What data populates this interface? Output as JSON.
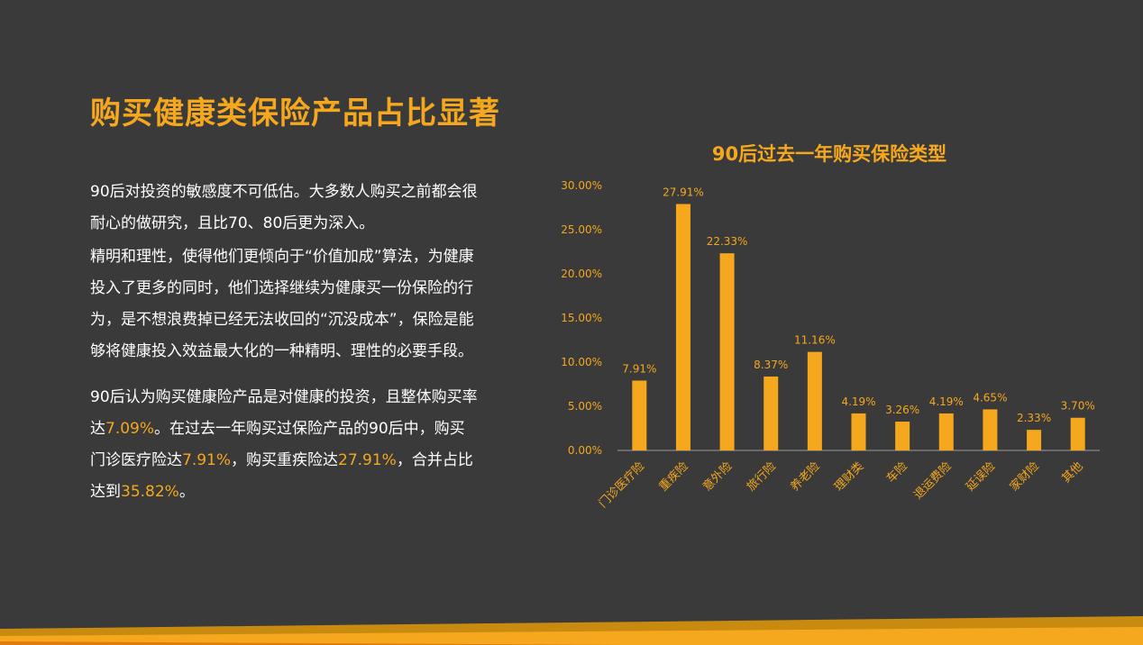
{
  "title": "购买健康类保险产品占比显著",
  "paragraphs": {
    "p1": "90后对投资的敏感度不可低估。大多数人购买之前都会很耐心的做研究，且比70、80后更为深入。",
    "p2": "精明和理性，使得他们更倾向于“价值加成”算法，为健康投入了更多的同时，他们选择继续为健康买一份保险的行为，是不想浪费掉已经无法收回的“沉没成本”，保险是能够将健康投入效益最大化的一种精明、理性的必要手段。",
    "p3": {
      "s1": "90后认为购买健康险产品是对健康的投资，且整体购买率达",
      "h1": "7.09%",
      "s2": "。在过去一年购买过保险产品的90后中，购买门诊医疗险达",
      "h2": "7.91%",
      "s3": "，购买重疾险达",
      "h3": "27.91%",
      "s4": "，合并占比达到",
      "h4": "35.82%",
      "s5": "。"
    }
  },
  "colors": {
    "background": "#3a3a3a",
    "accent": "#f5a81e",
    "bar": "#f5a81e",
    "text": "#ffffff",
    "axis": "#9a9a9a"
  },
  "chart_data": {
    "type": "bar",
    "title": "90后过去一年购买保险类型",
    "categories": [
      "门诊医疗险",
      "重疾险",
      "意外险",
      "旅行险",
      "养老险",
      "理财类",
      "车险",
      "退运费险",
      "延误险",
      "家财险",
      "其他"
    ],
    "values": [
      7.91,
      27.91,
      22.33,
      8.37,
      11.16,
      4.19,
      3.26,
      4.19,
      4.65,
      2.33,
      3.7
    ],
    "data_labels": [
      "7.91%",
      "27.91%",
      "22.33%",
      "8.37%",
      "11.16%",
      "4.19%",
      "3.26%",
      "4.19%",
      "4.65%",
      "2.33%",
      "3.70%"
    ],
    "yticks": [
      0,
      5,
      10,
      15,
      20,
      25,
      30
    ],
    "ytick_labels": [
      "0.00%",
      "5.00%",
      "10.00%",
      "15.00%",
      "20.00%",
      "25.00%",
      "30.00%"
    ],
    "ylim": [
      0,
      30
    ],
    "grid": false,
    "legend": "none"
  }
}
